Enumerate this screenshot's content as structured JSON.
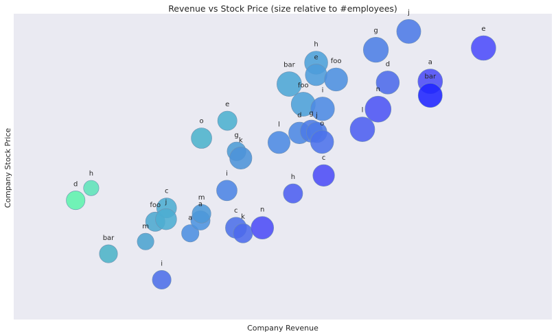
{
  "chart_data": {
    "type": "scatter",
    "title": "Revenue vs Stock Price (size relative to #employees)",
    "xlabel": "Company Revenue",
    "ylabel": "Company Stock Price",
    "xlim": [
      0,
      100
    ],
    "ylim": [
      0,
      100
    ],
    "grid": false,
    "legend": "none",
    "points": [
      {
        "label": "d",
        "x": 11.5,
        "y": 39.0,
        "size": 0.3,
        "color": "#5ef2ad"
      },
      {
        "label": "h",
        "x": 14.4,
        "y": 43.0,
        "size": 0.2,
        "color": "#5ee3b8"
      },
      {
        "label": "bar",
        "x": 17.6,
        "y": 21.5,
        "size": 0.28,
        "color": "#4cb3c7"
      },
      {
        "label": "m",
        "x": 24.5,
        "y": 25.5,
        "size": 0.24,
        "color": "#4ca3cf"
      },
      {
        "label": "foo",
        "x": 26.3,
        "y": 32.0,
        "size": 0.32,
        "color": "#4ca8cf"
      },
      {
        "label": "c",
        "x": 28.4,
        "y": 36.5,
        "size": 0.34,
        "color": "#4cadd2"
      },
      {
        "label": "j",
        "x": 28.3,
        "y": 32.8,
        "size": 0.38,
        "color": "#4cadd2"
      },
      {
        "label": "i",
        "x": 27.5,
        "y": 13.0,
        "size": 0.3,
        "color": "#4c6ee8"
      },
      {
        "label": "a",
        "x": 32.8,
        "y": 28.2,
        "size": 0.26,
        "color": "#4c8ee0"
      },
      {
        "label": "a",
        "x": 34.7,
        "y": 32.4,
        "size": 0.32,
        "color": "#4c93df"
      },
      {
        "label": "m",
        "x": 34.9,
        "y": 34.6,
        "size": 0.3,
        "color": "#4c98d8"
      },
      {
        "label": "o",
        "x": 34.9,
        "y": 59.3,
        "size": 0.36,
        "color": "#4cb3cc"
      },
      {
        "label": "e",
        "x": 39.7,
        "y": 65.0,
        "size": 0.32,
        "color": "#4cb0cf"
      },
      {
        "label": "i",
        "x": 39.6,
        "y": 42.2,
        "size": 0.36,
        "color": "#4c84e4"
      },
      {
        "label": "g",
        "x": 41.4,
        "y": 55.0,
        "size": 0.3,
        "color": "#4c9cd5"
      },
      {
        "label": "k",
        "x": 42.2,
        "y": 52.8,
        "size": 0.42,
        "color": "#4c93d8"
      },
      {
        "label": "c",
        "x": 41.3,
        "y": 30.0,
        "size": 0.38,
        "color": "#4c6fe8"
      },
      {
        "label": "k",
        "x": 42.6,
        "y": 28.2,
        "size": 0.32,
        "color": "#4c6aec"
      },
      {
        "label": "n",
        "x": 46.2,
        "y": 30.0,
        "size": 0.44,
        "color": "#4c4cf6"
      },
      {
        "label": "l",
        "x": 49.3,
        "y": 57.9,
        "size": 0.42,
        "color": "#4c8ae2"
      },
      {
        "label": "h",
        "x": 51.9,
        "y": 41.2,
        "size": 0.32,
        "color": "#4c5ff0"
      },
      {
        "label": "bar",
        "x": 51.2,
        "y": 77.0,
        "size": 0.52,
        "color": "#4ca6d5"
      },
      {
        "label": "d",
        "x": 53.1,
        "y": 61.0,
        "size": 0.4,
        "color": "#4c88e2"
      },
      {
        "label": "foo",
        "x": 53.8,
        "y": 70.4,
        "size": 0.5,
        "color": "#4ca0d8"
      },
      {
        "label": "g",
        "x": 55.3,
        "y": 61.6,
        "size": 0.42,
        "color": "#4c7be6"
      },
      {
        "label": "j",
        "x": 56.3,
        "y": 61.2,
        "size": 0.36,
        "color": "#4c7ae6"
      },
      {
        "label": "o",
        "x": 57.3,
        "y": 58.1,
        "size": 0.46,
        "color": "#4c72ea"
      },
      {
        "label": "i",
        "x": 57.4,
        "y": 68.9,
        "size": 0.48,
        "color": "#4c8ae2"
      },
      {
        "label": "c",
        "x": 57.6,
        "y": 47.1,
        "size": 0.4,
        "color": "#4c4cf6"
      },
      {
        "label": "h",
        "x": 56.2,
        "y": 84.0,
        "size": 0.46,
        "color": "#4ca0d8"
      },
      {
        "label": "e",
        "x": 56.2,
        "y": 80.0,
        "size": 0.4,
        "color": "#4c9cdb"
      },
      {
        "label": "foo",
        "x": 59.9,
        "y": 78.5,
        "size": 0.46,
        "color": "#4c90df"
      },
      {
        "label": "l",
        "x": 64.8,
        "y": 62.2,
        "size": 0.52,
        "color": "#4c5ff0"
      },
      {
        "label": "n",
        "x": 67.7,
        "y": 68.8,
        "size": 0.58,
        "color": "#4c54f4"
      },
      {
        "label": "g",
        "x": 67.3,
        "y": 88.2,
        "size": 0.54,
        "color": "#4c7ee5"
      },
      {
        "label": "d",
        "x": 69.5,
        "y": 77.5,
        "size": 0.46,
        "color": "#4c6ae9"
      },
      {
        "label": "j",
        "x": 73.4,
        "y": 94.2,
        "size": 0.5,
        "color": "#4c7ae6"
      },
      {
        "label": "a",
        "x": 77.4,
        "y": 77.9,
        "size": 0.52,
        "color": "#4c4cf6"
      },
      {
        "label": "bar",
        "x": 77.4,
        "y": 73.3,
        "size": 0.5,
        "color": "#1f24ff"
      },
      {
        "label": "e",
        "x": 87.3,
        "y": 88.8,
        "size": 0.52,
        "color": "#4c4cfa"
      }
    ]
  }
}
